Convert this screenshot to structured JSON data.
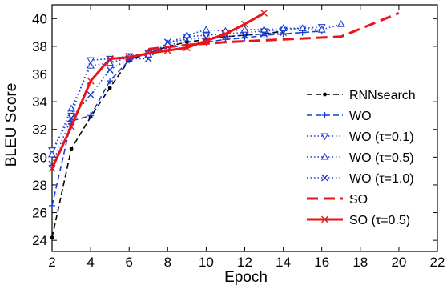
{
  "chart_data": {
    "type": "line",
    "title": "",
    "xlabel": "Epoch",
    "ylabel": "BLEU Score",
    "xlim": [
      2,
      22
    ],
    "ylim": [
      23.2,
      41
    ],
    "xticks": [
      2,
      4,
      6,
      8,
      10,
      12,
      14,
      16,
      18,
      20,
      22
    ],
    "yticks": [
      24,
      26,
      28,
      30,
      32,
      34,
      36,
      38,
      40
    ],
    "grid": false,
    "legend_position": "bottom-right",
    "series": [
      {
        "name": "RNNsearch",
        "color": "#000000",
        "style": "dashed",
        "marker": "dot",
        "x": [
          2,
          3,
          4,
          5,
          6,
          7,
          8,
          9,
          10,
          11,
          12,
          13,
          14
        ],
        "y": [
          24.2,
          30.6,
          32.9,
          35.0,
          37.0,
          37.5,
          38.0,
          38.3,
          38.5,
          38.7,
          38.8,
          38.9,
          39.1
        ]
      },
      {
        "name": "WO",
        "color": "#1a3fd6",
        "style": "dashed",
        "marker": "plus",
        "x": [
          2,
          3,
          4,
          5,
          6,
          7,
          8,
          9,
          10,
          11,
          12,
          13,
          14,
          15,
          16
        ],
        "y": [
          26.5,
          32.6,
          33.0,
          35.5,
          37.0,
          37.6,
          37.9,
          38.1,
          38.3,
          38.5,
          38.6,
          38.8,
          38.9,
          39.0,
          39.1
        ]
      },
      {
        "name": "WO (τ=0.1)",
        "color": "#1a3fd6",
        "style": "dotted",
        "marker": "triangle-down",
        "x": [
          2,
          3,
          4,
          5,
          6,
          7,
          8,
          9,
          10,
          11,
          12,
          13,
          14,
          15,
          16
        ],
        "y": [
          30.5,
          33.0,
          37.0,
          37.1,
          37.3,
          37.5,
          37.9,
          38.7,
          38.8,
          38.9,
          39.0,
          39.1,
          39.2,
          39.3,
          39.4
        ]
      },
      {
        "name": "WO (τ=0.5)",
        "color": "#1a3fd6",
        "style": "dotted",
        "marker": "triangle-up",
        "x": [
          2,
          3,
          4,
          5,
          6,
          7,
          8,
          9,
          10,
          11,
          12,
          13,
          14,
          15,
          16,
          17
        ],
        "y": [
          30.2,
          33.5,
          36.6,
          36.8,
          37.2,
          37.4,
          38.2,
          38.8,
          39.2,
          39.1,
          39.2,
          39.2,
          39.3,
          39.3,
          39.2,
          39.6
        ]
      },
      {
        "name": "WO (τ=1.0)",
        "color": "#1a3fd6",
        "style": "dotted",
        "marker": "x",
        "x": [
          2,
          3,
          4,
          5,
          6,
          7,
          8,
          9,
          10,
          11,
          12,
          13,
          14
        ],
        "y": [
          29.5,
          32.8,
          34.5,
          36.3,
          37.1,
          37.1,
          38.3,
          38.5,
          38.6,
          38.7,
          38.8,
          38.9,
          39.0
        ]
      },
      {
        "name": "SO",
        "color": "#e8141a",
        "style": "dashed",
        "marker": "none",
        "x": [
          7,
          9,
          11,
          14,
          17,
          20
        ],
        "y": [
          37.8,
          38.1,
          38.3,
          38.5,
          38.7,
          40.4
        ]
      },
      {
        "name": "SO (τ=0.5)",
        "color": "#e8141a",
        "style": "solid",
        "marker": "x",
        "x": [
          2,
          3,
          4,
          5,
          6,
          7,
          8,
          9,
          10,
          11,
          12,
          13
        ],
        "y": [
          29.2,
          32.2,
          35.5,
          37.1,
          37.2,
          37.5,
          37.7,
          37.9,
          38.4,
          38.9,
          39.6,
          40.4
        ]
      }
    ]
  }
}
